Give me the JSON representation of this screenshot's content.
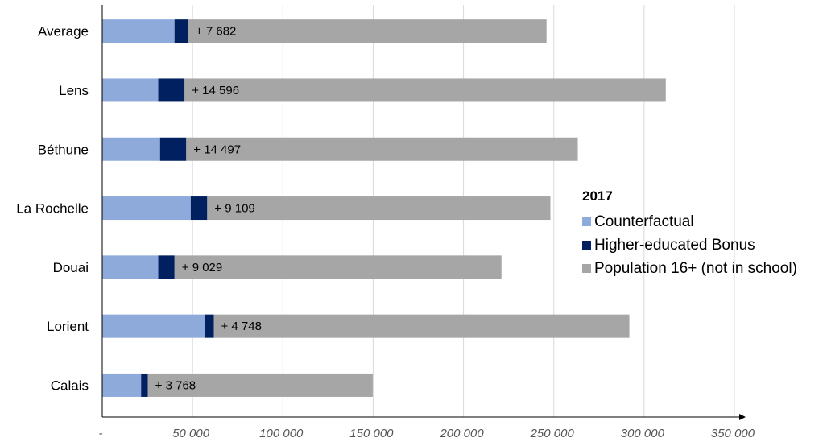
{
  "colors": {
    "counterfactual": "#8eaadb",
    "bonus": "#002060",
    "population": "#a6a6a6",
    "grid": "#d9d9d9",
    "axis": "#000000"
  },
  "legend": {
    "title": "2017",
    "items": [
      {
        "label": "Counterfactual",
        "color": "#8eaadb"
      },
      {
        "label": "Higher-educated Bonus",
        "color": "#002060"
      },
      {
        "label": "Population 16+ (not in school)",
        "color": "#a6a6a6"
      }
    ]
  },
  "chart_data": {
    "type": "bar",
    "orientation": "horizontal",
    "stacked": true,
    "categories": [
      "Average",
      "Lens",
      "Béthune",
      "La Rochelle",
      "Douai",
      "Lorient",
      "Calais"
    ],
    "series": [
      {
        "name": "Counterfactual",
        "values": [
          40000,
          31000,
          32000,
          49000,
          31000,
          57000,
          21500
        ]
      },
      {
        "name": "Higher-educated Bonus",
        "values": [
          7682,
          14596,
          14497,
          9109,
          9029,
          4748,
          3768
        ]
      },
      {
        "name": "Population 16+ (not in school)",
        "values": [
          198300,
          266400,
          216800,
          190000,
          181000,
          230100,
          124500
        ]
      }
    ],
    "data_labels": [
      "+ 7 682",
      "+ 14 596",
      "+ 14 497",
      "+ 9 109",
      "+ 9 029",
      "+ 4 748",
      "+ 3 768"
    ],
    "xlim": [
      0,
      350000
    ],
    "x_ticks": [
      0,
      50000,
      100000,
      150000,
      200000,
      250000,
      300000,
      350000
    ],
    "x_tick_labels": [
      "-",
      "50 000",
      "100 000",
      "150 000",
      "200 000",
      "250 000",
      "300 000",
      "350 000"
    ],
    "grid": "vertical",
    "legend_position": "right"
  }
}
